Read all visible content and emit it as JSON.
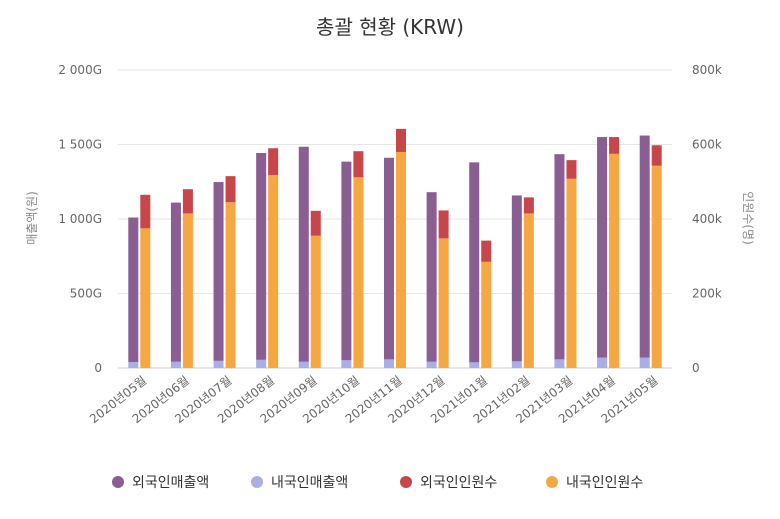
{
  "chart_data": {
    "type": "bar",
    "title": "총괄 현황 (KRW)",
    "categories": [
      "2020년05월",
      "2020년06월",
      "2020년07월",
      "2020년08월",
      "2020년09월",
      "2020년10월",
      "2020년11월",
      "2020년12월",
      "2021년01월",
      "2021년02월",
      "2021년03월",
      "2021년04월",
      "2021년05월"
    ],
    "y_left": {
      "label": "매출액(원)",
      "ticks": [
        "0",
        "500G",
        "1 000G",
        "1 500G",
        "2 000G"
      ],
      "ylim": [
        0,
        2000
      ]
    },
    "y_right": {
      "label": "인원수(명)",
      "ticks": [
        "0",
        "200k",
        "400k",
        "600k",
        "800k"
      ],
      "ylim": [
        0,
        800
      ]
    },
    "stacks": {
      "sales": {
        "axis": "left",
        "series": [
          {
            "name": "내국인매출액",
            "color": "#a9aee6",
            "values": [
              40,
              42,
              48,
              55,
              42,
              52,
              58,
              42,
              38,
              45,
              58,
              70,
              70
            ]
          },
          {
            "name": "외국인매출액",
            "color": "#8a5d93",
            "values": [
              970,
              1068,
              1200,
              1388,
              1443,
              1333,
              1353,
              1138,
              1342,
              1113,
              1377,
              1480,
              1490
            ]
          }
        ]
      },
      "visitors": {
        "axis": "right",
        "series": [
          {
            "name": "내국인인원수",
            "color": "#f5a742",
            "values": [
              375,
              415,
              445,
              518,
              355,
              512,
              580,
              348,
              285,
              415,
              508,
              575,
              543
            ]
          },
          {
            "name": "외국인인원수",
            "color": "#c6464a",
            "values": [
              90,
              65,
              70,
              72,
              67,
              70,
              62,
              75,
              57,
              43,
              50,
              45,
              55
            ]
          }
        ]
      }
    },
    "legend": [
      {
        "name": "외국인매출액",
        "color": "#8a5d93"
      },
      {
        "name": "내국인매출액",
        "color": "#a9aee6"
      },
      {
        "name": "외국인인원수",
        "color": "#c6464a"
      },
      {
        "name": "내국인인원수",
        "color": "#f5a742"
      }
    ],
    "legend_position": "bottom",
    "grid": true
  }
}
